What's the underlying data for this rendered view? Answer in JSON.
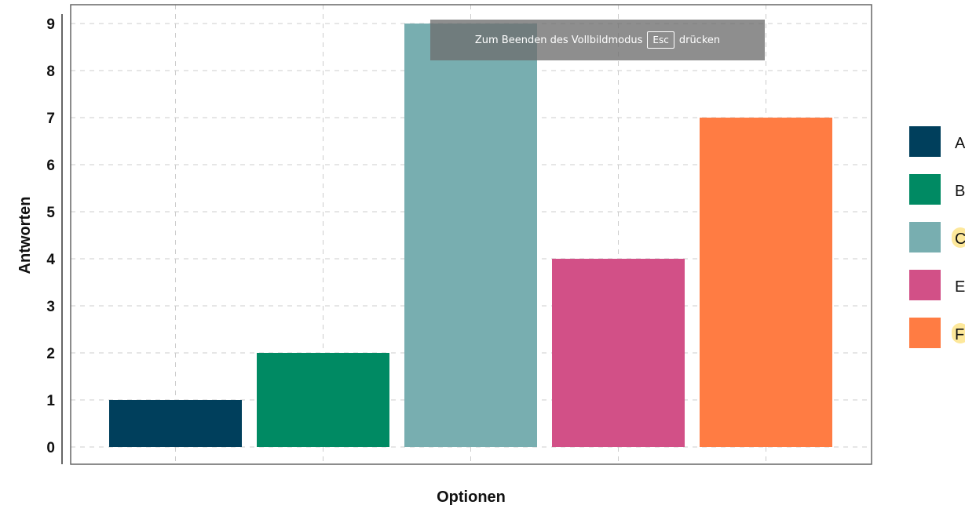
{
  "chart_data": {
    "type": "bar",
    "categories": [
      "A",
      "B",
      "C",
      "E",
      "F"
    ],
    "values": [
      1,
      2,
      9,
      4,
      7
    ],
    "colors": [
      "#003f5c",
      "#008a63",
      "#78aeb0",
      "#d25087",
      "#ff7c43"
    ],
    "title": "",
    "xlabel": "Optionen",
    "ylabel": "Antworten",
    "ylim": [
      0,
      9
    ],
    "yticks": [
      0,
      1,
      2,
      3,
      4,
      5,
      6,
      7,
      8,
      9
    ],
    "grid": true,
    "legend": {
      "position": "right",
      "entries": [
        "A",
        "B",
        "C",
        "E",
        "F"
      ],
      "highlighted": [
        "C",
        "F"
      ],
      "highlight_color": "#fde89b"
    }
  },
  "overlay": {
    "before": "Zum Beenden des Vollbildmodus",
    "key": "Esc",
    "after": "drücken"
  }
}
